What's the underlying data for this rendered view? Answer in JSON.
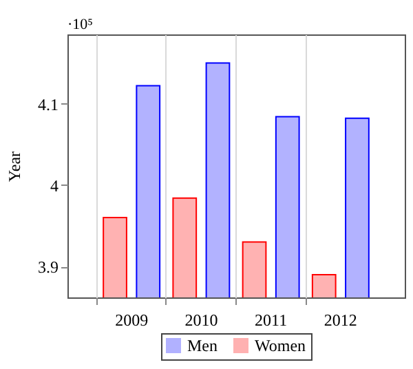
{
  "chart_data": {
    "type": "bar",
    "ylabel": "Year",
    "categories": [
      "2009",
      "2010",
      "2011",
      "2012"
    ],
    "series": [
      {
        "name": "Men",
        "color": "#0000ff",
        "values": [
          4.122,
          4.15,
          4.084,
          4.082
        ]
      },
      {
        "name": "Women",
        "color": "#ff0000",
        "values": [
          3.96,
          3.984,
          3.93,
          3.89
        ]
      }
    ],
    "ylim": [
      3.862,
      4.185
    ],
    "yticks": [
      3.9,
      4,
      4.1
    ],
    "grid": "x",
    "legend": "bottom",
    "annotations": [
      "·10⁵"
    ]
  }
}
